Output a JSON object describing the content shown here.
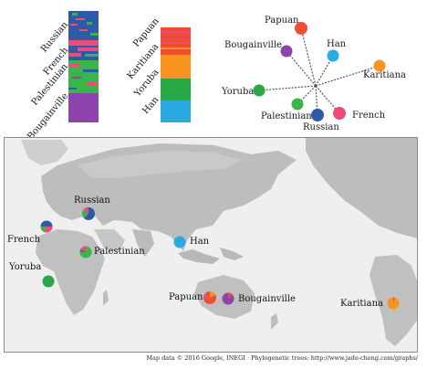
{
  "panel_a": {
    "labels": [
      "Russian",
      "French",
      "Palestinian",
      "Bougainville"
    ]
  },
  "panel_b": {
    "labels": [
      "Papuan",
      "Karitiana",
      "Yoruba",
      "Han"
    ]
  },
  "tree": {
    "labels": {
      "papuan": "Papuan",
      "bougainville": "Bougainville",
      "han": "Han",
      "karitiana": "Karitiana",
      "yoruba": "Yoruba",
      "palestinian": "Palestinian",
      "french": "French",
      "russian": "Russian"
    }
  },
  "colors": {
    "papuan": "#f04e30",
    "bougainville": "#8e44ad",
    "han": "#29abe2",
    "karitiana": "#f7931e",
    "yoruba": "#27a845",
    "palestinian": "#39b54a",
    "french": "#ee4b7a",
    "russian": "#2e5aa8"
  },
  "map": {
    "labels": {
      "russian": "Russian",
      "french": "French",
      "palestinian": "Palestinian",
      "yoruba": "Yoruba",
      "han": "Han",
      "papuan": "Papuan",
      "bougainville": "Bougainville",
      "karitiana": "Karitiana"
    },
    "credit": "Map data © 2016 Google, INEGI · Phylogenetic trees: http://www.jade-cheng.com/graphs/"
  }
}
